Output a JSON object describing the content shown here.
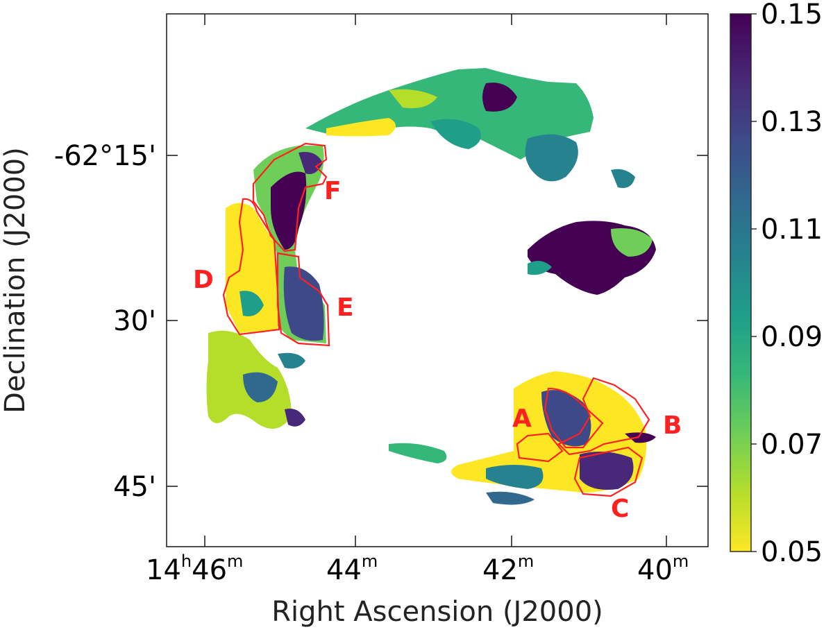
{
  "chart_data": {
    "type": "heatmap",
    "xlabel": "Right Ascension (J2000)",
    "ylabel": "Declination (J2000)",
    "x_ticks": [
      {
        "hours": 14,
        "minutes": 46,
        "text_main": "14",
        "text_h": "h",
        "text_m": "46",
        "text_msup": "m"
      },
      {
        "minutes": 44,
        "text_main": "",
        "text_h": "",
        "text_m": "44",
        "text_msup": "m"
      },
      {
        "minutes": 42,
        "text_main": "",
        "text_h": "",
        "text_m": "42",
        "text_msup": "m"
      },
      {
        "minutes": 40,
        "text_main": "",
        "text_h": "",
        "text_m": "40",
        "text_msup": "m"
      }
    ],
    "y_ticks": [
      {
        "dec_arcmin": -15,
        "label": "-62°15'"
      },
      {
        "dec_arcmin": -30,
        "label": "30'"
      },
      {
        "dec_arcmin": -45,
        "label": "45'"
      }
    ],
    "colorbar": {
      "min": 0.05,
      "max": 0.15,
      "tick_values": [
        0.05,
        0.07,
        0.09,
        0.11,
        0.13,
        0.15
      ],
      "tick_labels": [
        "0.05",
        "0.07",
        "0.09",
        "0.11",
        "0.13",
        "0.15"
      ],
      "colormap": "viridis_r",
      "stops": [
        "#fde725",
        "#b5de2b",
        "#6ece58",
        "#35b779",
        "#1f9e89",
        "#26828e",
        "#31688e",
        "#3e4989",
        "#482878",
        "#440154"
      ]
    },
    "regions": [
      {
        "label": "A"
      },
      {
        "label": "B"
      },
      {
        "label": "C"
      },
      {
        "label": "D"
      },
      {
        "label": "E"
      },
      {
        "label": "F"
      }
    ],
    "region_color": "#ff2020"
  }
}
